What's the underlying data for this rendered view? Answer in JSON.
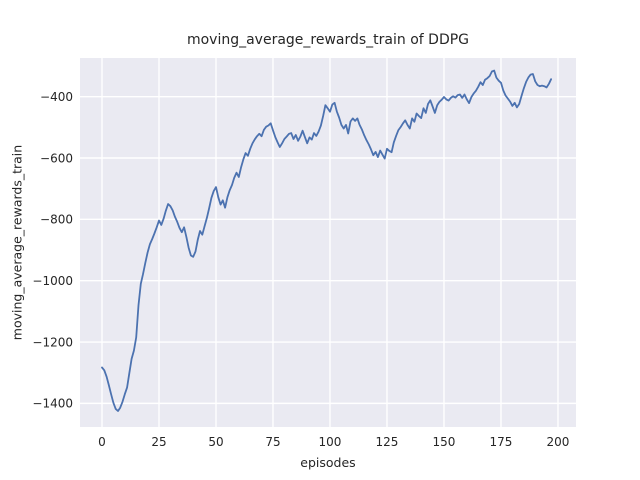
{
  "figure": {
    "kind": "matplotlib-seaborn-line-plot"
  },
  "chart_data": {
    "type": "line",
    "title": "moving_average_rewards_train of DDPG",
    "xlabel": "episodes",
    "ylabel": "moving_average_rewards_train",
    "legend": null,
    "grid": true,
    "xticks": [
      0,
      25,
      50,
      75,
      100,
      125,
      150,
      175,
      200
    ],
    "xticklabels": [
      "0",
      "25",
      "50",
      "75",
      "100",
      "125",
      "150",
      "175",
      "200"
    ],
    "yticks": [
      -400,
      -600,
      -800,
      -1000,
      -1200,
      -1400
    ],
    "yticklabels": [
      "−400",
      "−600",
      "−800",
      "−1000",
      "−1200",
      "−1400"
    ],
    "xlim": [
      -9.65,
      207.9
    ],
    "ylim": [
      -1477,
      -274
    ],
    "colors": {
      "line": "#4c72b0",
      "plot_bg": "#eaeaf2",
      "grid": "#ffffff",
      "text": "#262626",
      "figure_bg": "#ffffff"
    },
    "series_name": "moving_average_rewards_train",
    "x": [
      0,
      1,
      2,
      3,
      4,
      5,
      6,
      7,
      8,
      9,
      10,
      11,
      12,
      13,
      14,
      15,
      16,
      17,
      18,
      19,
      20,
      21,
      22,
      23,
      24,
      25,
      26,
      27,
      28,
      29,
      30,
      31,
      32,
      33,
      34,
      35,
      36,
      37,
      38,
      39,
      40,
      41,
      42,
      43,
      44,
      45,
      46,
      47,
      48,
      49,
      50,
      51,
      52,
      53,
      54,
      55,
      56,
      57,
      58,
      59,
      60,
      61,
      62,
      63,
      64,
      65,
      66,
      67,
      68,
      69,
      70,
      71,
      72,
      73,
      74,
      75,
      76,
      77,
      78,
      79,
      80,
      81,
      82,
      83,
      84,
      85,
      86,
      87,
      88,
      89,
      90,
      91,
      92,
      93,
      94,
      95,
      96,
      97,
      98,
      99,
      100,
      101,
      102,
      103,
      104,
      105,
      106,
      107,
      108,
      109,
      110,
      111,
      112,
      113,
      114,
      115,
      116,
      117,
      118,
      119,
      120,
      121,
      122,
      123,
      124,
      125,
      126,
      127,
      128,
      129,
      130,
      131,
      132,
      133,
      134,
      135,
      136,
      137,
      138,
      139,
      140,
      141,
      142,
      143,
      144,
      145,
      146,
      147,
      148,
      149,
      150,
      151,
      152,
      153,
      154,
      155,
      156,
      157,
      158,
      159,
      160,
      161,
      162,
      163,
      164,
      165,
      166,
      167,
      168,
      169,
      170,
      171,
      172,
      173,
      174,
      175,
      176,
      177,
      178,
      179,
      180,
      181,
      182,
      183,
      184,
      185,
      186,
      187,
      188,
      189,
      190,
      191,
      192,
      193,
      194,
      195,
      196,
      197
    ],
    "y": [
      -1283,
      -1292,
      -1313,
      -1340,
      -1370,
      -1398,
      -1418,
      -1425,
      -1414,
      -1395,
      -1370,
      -1348,
      -1300,
      -1255,
      -1228,
      -1185,
      -1080,
      -1010,
      -979,
      -942,
      -908,
      -881,
      -864,
      -846,
      -826,
      -804,
      -818,
      -798,
      -772,
      -750,
      -757,
      -771,
      -792,
      -808,
      -828,
      -842,
      -826,
      -858,
      -892,
      -918,
      -922,
      -905,
      -866,
      -838,
      -850,
      -822,
      -795,
      -763,
      -730,
      -708,
      -695,
      -728,
      -752,
      -738,
      -762,
      -728,
      -705,
      -688,
      -665,
      -648,
      -662,
      -630,
      -604,
      -584,
      -593,
      -570,
      -552,
      -539,
      -529,
      -521,
      -529,
      -508,
      -498,
      -494,
      -487,
      -510,
      -532,
      -549,
      -564,
      -552,
      -538,
      -530,
      -521,
      -519,
      -538,
      -525,
      -544,
      -530,
      -511,
      -532,
      -552,
      -533,
      -540,
      -519,
      -528,
      -514,
      -494,
      -462,
      -428,
      -438,
      -449,
      -426,
      -420,
      -448,
      -468,
      -492,
      -504,
      -492,
      -520,
      -481,
      -471,
      -479,
      -471,
      -492,
      -507,
      -526,
      -542,
      -556,
      -572,
      -591,
      -580,
      -597,
      -576,
      -589,
      -602,
      -570,
      -577,
      -581,
      -549,
      -528,
      -509,
      -499,
      -487,
      -477,
      -492,
      -504,
      -471,
      -482,
      -455,
      -463,
      -470,
      -438,
      -453,
      -424,
      -412,
      -432,
      -453,
      -428,
      -417,
      -410,
      -401,
      -409,
      -413,
      -404,
      -399,
      -403,
      -395,
      -393,
      -404,
      -393,
      -409,
      -421,
      -401,
      -390,
      -381,
      -368,
      -353,
      -362,
      -345,
      -340,
      -333,
      -318,
      -315,
      -338,
      -348,
      -355,
      -380,
      -396,
      -406,
      -416,
      -430,
      -420,
      -435,
      -424,
      -398,
      -373,
      -352,
      -338,
      -328,
      -326,
      -350,
      -362,
      -366,
      -364,
      -366,
      -370,
      -358,
      -343
    ]
  }
}
